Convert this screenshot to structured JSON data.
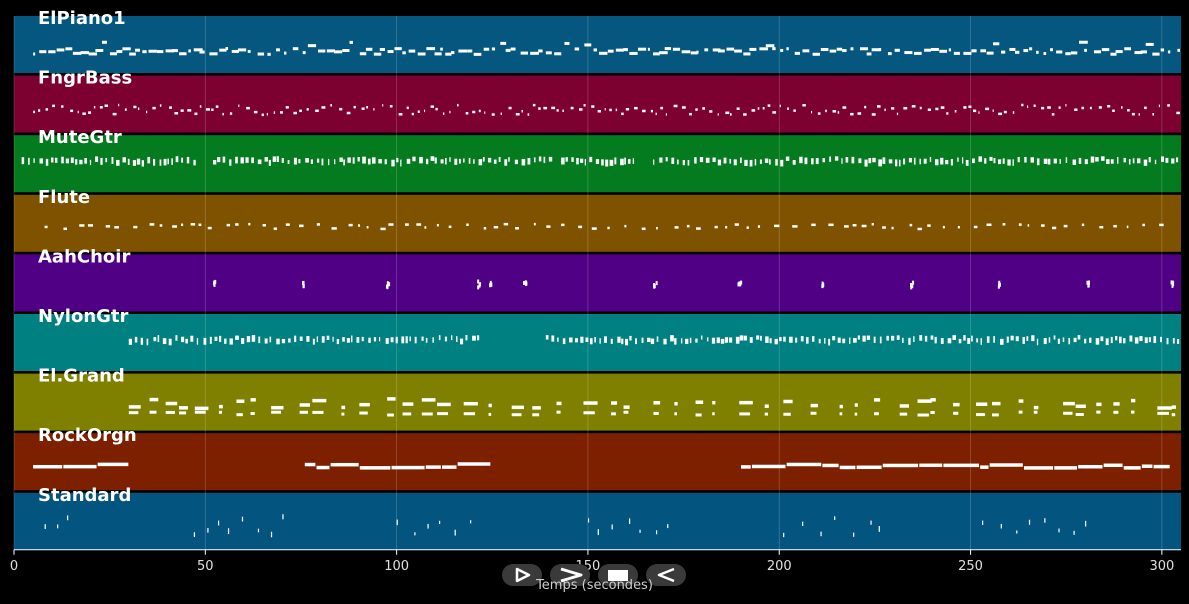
{
  "chart_data": {
    "type": "piano-roll",
    "title": "",
    "xlabel": "Temps (secondes)",
    "ylabel": "",
    "xlim": [
      0,
      305
    ],
    "xticks": [
      0,
      50,
      100,
      150,
      200,
      250,
      300
    ],
    "grid": true,
    "tracks": [
      {
        "name": "ElPiano1",
        "color": "#05577f",
        "active": [
          [
            5,
            305
          ]
        ],
        "style": "busy"
      },
      {
        "name": "FngrBass",
        "color": "#7c0030",
        "active": [
          [
            5,
            305
          ]
        ],
        "style": "dashed"
      },
      {
        "name": "MuteGtr",
        "color": "#047b1e",
        "active": [
          [
            2,
            48
          ],
          [
            52,
            140
          ],
          [
            143,
            162
          ],
          [
            167,
            305
          ]
        ],
        "style": "dense"
      },
      {
        "name": "Flute",
        "color": "#7f5200",
        "active": [
          [
            8,
            305
          ]
        ],
        "style": "sparse"
      },
      {
        "name": "AahChoir",
        "color": "#500085",
        "active": [
          [
            52,
            52.6
          ],
          [
            75,
            75.6
          ],
          [
            97,
            97.8
          ],
          [
            121,
            121.4
          ],
          [
            124,
            126
          ],
          [
            133,
            135
          ],
          [
            167,
            167.6
          ],
          [
            189,
            190.6
          ],
          [
            211,
            212.6
          ],
          [
            234,
            235.6
          ],
          [
            257,
            258.6
          ],
          [
            280,
            281.6
          ],
          [
            302,
            304
          ]
        ],
        "style": "points"
      },
      {
        "name": "NylonGtr",
        "color": "#008080",
        "active": [
          [
            30,
            122
          ],
          [
            139,
            305
          ]
        ],
        "style": "dense"
      },
      {
        "name": "El.Grand",
        "color": "#7f7f00",
        "active": [
          [
            30,
            305
          ]
        ],
        "style": "blocks"
      },
      {
        "name": "RockOrgn",
        "color": "#7c2000",
        "active": [
          [
            5,
            30
          ],
          [
            76,
            122
          ],
          [
            190,
            305
          ]
        ],
        "style": "line"
      },
      {
        "name": "Standard",
        "color": "#045480",
        "active": [
          [
            8,
            16
          ],
          [
            47,
            72
          ],
          [
            100,
            122
          ],
          [
            150,
            172
          ],
          [
            201,
            228
          ],
          [
            253,
            280
          ]
        ],
        "style": "drums"
      }
    ]
  },
  "controls": [
    {
      "name": "play-button",
      "icon": "play-icon"
    },
    {
      "name": "forward-button",
      "icon": "chevron-right-icon"
    },
    {
      "name": "stop-button",
      "icon": "stop-icon"
    },
    {
      "name": "rewind-button",
      "icon": "rewind-icon"
    }
  ]
}
